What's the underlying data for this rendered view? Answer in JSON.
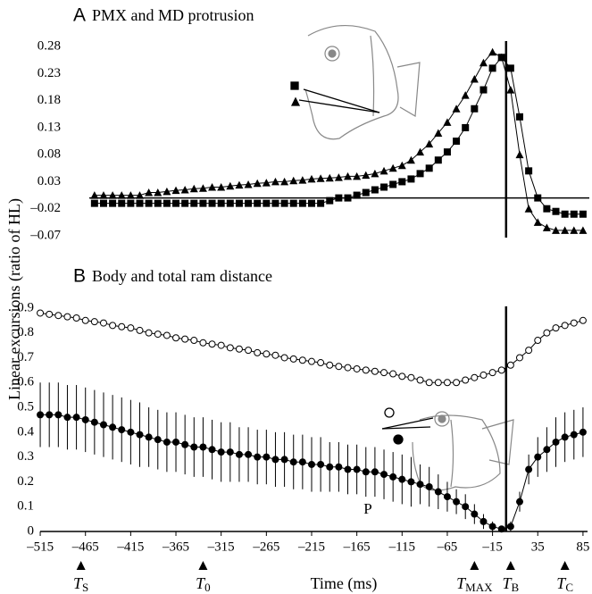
{
  "chart_data": [
    {
      "type": "line",
      "label": "A",
      "title": "PMX and MD protrusion",
      "ylabel": "Linear excursions (ratio of HL)",
      "x": [
        -455,
        -445,
        -435,
        -425,
        -415,
        -405,
        -395,
        -385,
        -375,
        -365,
        -355,
        -345,
        -335,
        -325,
        -315,
        -305,
        -295,
        -285,
        -275,
        -265,
        -255,
        -245,
        -235,
        -225,
        -215,
        -205,
        -195,
        -185,
        -175,
        -165,
        -155,
        -145,
        -135,
        -125,
        -115,
        -105,
        -95,
        -85,
        -75,
        -65,
        -55,
        -45,
        -35,
        -25,
        -15,
        -5,
        5,
        15,
        25,
        35,
        45,
        55,
        65,
        75,
        85
      ],
      "xlim": [
        -520,
        92
      ],
      "ylim": [
        -0.08,
        0.31
      ],
      "yticks": [
        0.28,
        0.23,
        0.18,
        0.13,
        0.08,
        0.03,
        {
          "value": -0.02,
          "label": "–0.02"
        },
        {
          "value": -0.07,
          "label": "–0.07"
        }
      ],
      "series": [
        {
          "marker": "triangle",
          "color": "#000000",
          "values": [
            0.005,
            0.005,
            0.005,
            0.005,
            0.005,
            0.005,
            0.01,
            0.01,
            0.012,
            0.014,
            0.015,
            0.017,
            0.018,
            0.02,
            0.02,
            0.022,
            0.024,
            0.025,
            0.027,
            0.028,
            0.03,
            0.03,
            0.032,
            0.033,
            0.035,
            0.036,
            0.037,
            0.038,
            0.04,
            0.04,
            0.042,
            0.045,
            0.05,
            0.055,
            0.06,
            0.07,
            0.085,
            0.1,
            0.12,
            0.14,
            0.165,
            0.19,
            0.22,
            0.25,
            0.27,
            0.26,
            0.2,
            0.08,
            -0.02,
            -0.045,
            -0.055,
            -0.06,
            -0.06,
            -0.06,
            -0.06
          ]
        },
        {
          "marker": "square",
          "color": "#000000",
          "values": [
            -0.01,
            -0.01,
            -0.01,
            -0.01,
            -0.01,
            -0.01,
            -0.01,
            -0.01,
            -0.01,
            -0.01,
            -0.01,
            -0.01,
            -0.01,
            -0.01,
            -0.01,
            -0.01,
            -0.01,
            -0.01,
            -0.01,
            -0.01,
            -0.01,
            -0.01,
            -0.01,
            -0.01,
            -0.01,
            -0.01,
            -0.005,
            0,
            0,
            0.005,
            0.01,
            0.015,
            0.02,
            0.025,
            0.03,
            0.035,
            0.045,
            0.055,
            0.07,
            0.085,
            0.105,
            0.13,
            0.165,
            0.2,
            0.24,
            0.26,
            0.24,
            0.15,
            0.05,
            0,
            -0.02,
            -0.025,
            -0.03,
            -0.03,
            -0.03
          ]
        }
      ]
    },
    {
      "type": "line",
      "label": "B",
      "title": "Body and total ram distance",
      "xlabel": "Time (ms)",
      "annotation": "P",
      "x": [
        -515,
        -505,
        -495,
        -485,
        -475,
        -465,
        -455,
        -445,
        -435,
        -425,
        -415,
        -405,
        -395,
        -385,
        -375,
        -365,
        -355,
        -345,
        -335,
        -325,
        -315,
        -305,
        -295,
        -285,
        -275,
        -265,
        -255,
        -245,
        -235,
        -225,
        -215,
        -205,
        -195,
        -185,
        -175,
        -165,
        -155,
        -145,
        -135,
        -125,
        -115,
        -105,
        -95,
        -85,
        -75,
        -65,
        -55,
        -45,
        -35,
        -25,
        -15,
        -5,
        5,
        15,
        25,
        35,
        45,
        55,
        65,
        75,
        85
      ],
      "xlim": [
        -520,
        92
      ],
      "ylim": [
        0,
        0.95
      ],
      "xticks": [
        {
          "value": -515,
          "label": "–515"
        },
        {
          "value": -465,
          "label": "–465"
        },
        {
          "value": -415,
          "label": "–415"
        },
        {
          "value": -365,
          "label": "–365"
        },
        {
          "value": -315,
          "label": "–315"
        },
        {
          "value": -265,
          "label": "–265"
        },
        {
          "value": -215,
          "label": "–215"
        },
        {
          "value": -165,
          "label": "–165"
        },
        {
          "value": -115,
          "label": "–115"
        },
        {
          "value": -65,
          "label": "–65"
        },
        {
          "value": -15,
          "label": "–15"
        },
        35,
        85
      ],
      "yticks": [
        0.9,
        0.8,
        0.7,
        0.6,
        0.5,
        0.4,
        0.3,
        0.2,
        0.1,
        0
      ],
      "events": [
        {
          "x": -470,
          "label": "T",
          "sub": "S"
        },
        {
          "x": -335,
          "label": "T",
          "sub": "0"
        },
        {
          "x": -35,
          "label": "T",
          "sub": "MAX"
        },
        {
          "x": 5,
          "label": "T",
          "sub": "B"
        },
        {
          "x": 65,
          "label": "T",
          "sub": "C"
        }
      ],
      "series": [
        {
          "marker": "open-circle",
          "color": "#000000",
          "values": [
            0.88,
            0.875,
            0.87,
            0.865,
            0.86,
            0.85,
            0.845,
            0.84,
            0.83,
            0.825,
            0.82,
            0.81,
            0.8,
            0.795,
            0.79,
            0.78,
            0.775,
            0.77,
            0.76,
            0.755,
            0.75,
            0.74,
            0.735,
            0.73,
            0.72,
            0.715,
            0.71,
            0.7,
            0.695,
            0.69,
            0.685,
            0.68,
            0.67,
            0.665,
            0.66,
            0.655,
            0.65,
            0.645,
            0.64,
            0.635,
            0.625,
            0.62,
            0.61,
            0.6,
            0.6,
            0.6,
            0.6,
            0.61,
            0.62,
            0.63,
            0.64,
            0.65,
            0.67,
            0.7,
            0.73,
            0.77,
            0.8,
            0.82,
            0.83,
            0.84,
            0.85
          ]
        },
        {
          "marker": "filled-circle",
          "color": "#000000",
          "values": [
            0.47,
            0.47,
            0.47,
            0.46,
            0.46,
            0.45,
            0.44,
            0.43,
            0.42,
            0.41,
            0.4,
            0.39,
            0.38,
            0.37,
            0.36,
            0.36,
            0.35,
            0.34,
            0.34,
            0.33,
            0.32,
            0.32,
            0.31,
            0.31,
            0.3,
            0.3,
            0.29,
            0.29,
            0.28,
            0.28,
            0.27,
            0.27,
            0.26,
            0.26,
            0.25,
            0.25,
            0.24,
            0.24,
            0.23,
            0.22,
            0.21,
            0.2,
            0.19,
            0.18,
            0.16,
            0.14,
            0.12,
            0.1,
            0.07,
            0.04,
            0.02,
            0.01,
            0.02,
            0.12,
            0.25,
            0.3,
            0.33,
            0.36,
            0.38,
            0.39,
            0.4
          ],
          "errors": [
            0.13,
            0.13,
            0.13,
            0.13,
            0.13,
            0.13,
            0.13,
            0.13,
            0.13,
            0.13,
            0.13,
            0.13,
            0.12,
            0.12,
            0.12,
            0.12,
            0.12,
            0.12,
            0.12,
            0.12,
            0.12,
            0.12,
            0.11,
            0.11,
            0.11,
            0.11,
            0.11,
            0.11,
            0.11,
            0.11,
            0.11,
            0.11,
            0.1,
            0.1,
            0.1,
            0.1,
            0.1,
            0.1,
            0.1,
            0.1,
            0.1,
            0.1,
            0.08,
            0.08,
            0.07,
            0.06,
            0.05,
            0.05,
            0.04,
            0.03,
            0.02,
            0.01,
            0.02,
            0.04,
            0.06,
            0.08,
            0.09,
            0.1,
            0.1,
            0.1,
            0.1
          ]
        }
      ]
    }
  ]
}
